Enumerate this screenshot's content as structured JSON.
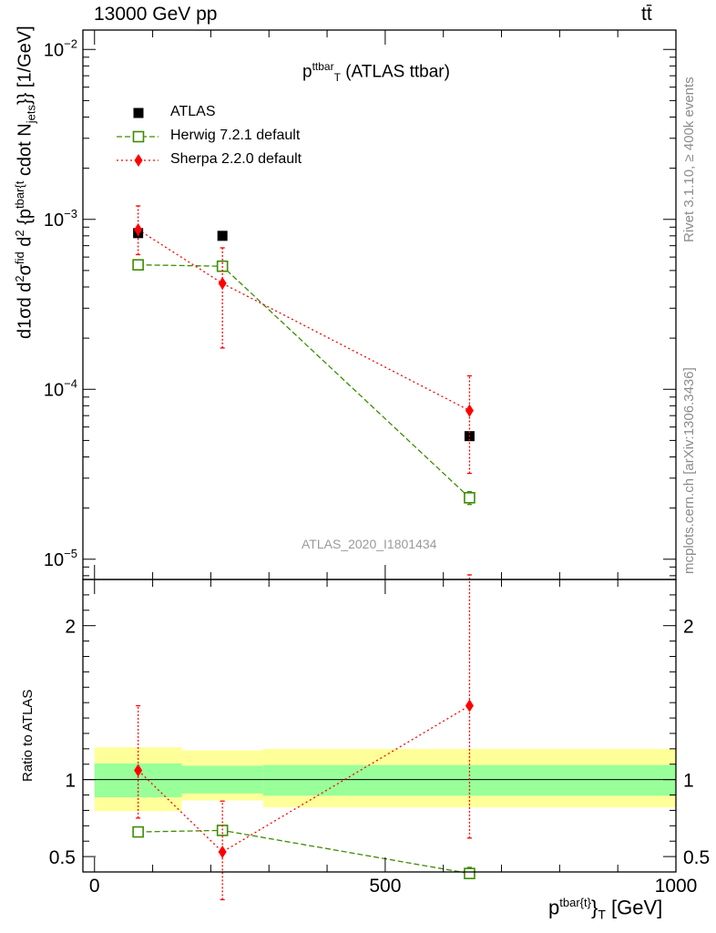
{
  "header": {
    "left": "13000 GeV pp",
    "right": "tt̄"
  },
  "title": {
    "main": "p",
    "sup": "ttbar",
    "sub": "T",
    "rest": " (ATLAS ttbar)"
  },
  "watermark": "ATLAS_2020_I1801434",
  "side_labels": {
    "rivet": "Rivet 3.1.10, ≥ 400k events",
    "mcplots": "mcplots.cern.ch [arXiv:1306.3436]"
  },
  "axes": {
    "main_ylabel": {
      "a": "d",
      "b": "1",
      "c": "σ",
      "d": "d",
      "e": "d",
      "f": "2",
      "g": "σ",
      "h": "fid",
      "i": "d",
      "j": "2",
      "k": " {p",
      "l": "tbar{t",
      "m": "cdot N",
      "n": "jets",
      "o": "}} [1/GeV]"
    },
    "ratio_ylabel": "Ratio to ATLAS",
    "xlabel": {
      "p": "p",
      "sup": "tbar{t}",
      "close": "}",
      "sub": "T",
      "unit": " [GeV]"
    }
  },
  "colors": {
    "data": "#000000",
    "herwig": "#3d8c00",
    "sherpa": "#ff0000",
    "band_outer": "#ffff99",
    "band_inner": "#99ff99"
  },
  "chart_data": {
    "type": "scatter",
    "x_unit": "GeV",
    "xlim": [
      -20,
      1000
    ],
    "main_ylim_log": [
      7.6e-06,
      0.013
    ],
    "ratio_ylim": [
      0.4,
      2.3
    ],
    "main_y_ticks": [
      {
        "value": 0.01,
        "base": "10",
        "exp": "−2"
      },
      {
        "value": 0.001,
        "base": "10",
        "exp": "−3"
      },
      {
        "value": 0.0001,
        "base": "10",
        "exp": "−4"
      },
      {
        "value": 1e-05,
        "base": "10",
        "exp": "−5"
      }
    ],
    "ratio_y_ticks": [
      {
        "value": 0.5,
        "label": "0.5"
      },
      {
        "value": 1,
        "label": "1"
      },
      {
        "value": 2,
        "label": "2"
      }
    ],
    "x_ticks": [
      {
        "value": 0,
        "label": "0"
      },
      {
        "value": 500,
        "label": "500"
      },
      {
        "value": 1000,
        "label": "1000"
      }
    ],
    "bins": [
      {
        "lo": 0,
        "hi": 150
      },
      {
        "lo": 150,
        "hi": 290
      },
      {
        "lo": 290,
        "hi": 1000
      }
    ],
    "series": [
      {
        "name": "ATLAS",
        "style": "data",
        "x": [
          75,
          220,
          645
        ],
        "y": [
          0.00083,
          0.0008,
          5.3e-05
        ],
        "ratio": [
          1.0,
          1.0,
          1.0
        ],
        "ratio_band_inner": [
          [
            0.885,
            1.105
          ],
          [
            0.91,
            1.09
          ],
          [
            0.895,
            1.095
          ]
        ],
        "ratio_band_outer": [
          [
            0.795,
            1.21
          ],
          [
            0.865,
            1.19
          ],
          [
            0.82,
            1.2
          ]
        ]
      },
      {
        "name": "Herwig 7.2.1 default",
        "style": "herwig",
        "x": [
          75,
          220,
          645
        ],
        "y": [
          0.00054,
          0.00053,
          2.3e-05
        ],
        "y_err": [
          [
            0.00052,
            0.00056
          ],
          [
            0.000508,
            0.000552
          ],
          [
            2.1e-05,
            2.5e-05
          ]
        ],
        "ratio": [
          0.66,
          0.67,
          0.39
        ],
        "ratio_err": [
          [
            0.635,
            0.685
          ],
          [
            0.648,
            0.69
          ],
          [
            0.375,
            0.43
          ]
        ]
      },
      {
        "name": "Sherpa 2.2.0 default",
        "style": "sherpa",
        "x": [
          75,
          220,
          645
        ],
        "y": [
          0.00087,
          0.00042,
          7.5e-05
        ],
        "y_err": [
          [
            0.00062,
            0.0012
          ],
          [
            0.000175,
            0.00068
          ],
          [
            3.2e-05,
            0.00012
          ]
        ],
        "ratio": [
          1.06,
          0.53,
          1.48
        ],
        "ratio_err": [
          [
            0.75,
            1.48
          ],
          [
            0.22,
            0.86
          ],
          [
            0.62,
            2.33
          ]
        ]
      }
    ]
  }
}
